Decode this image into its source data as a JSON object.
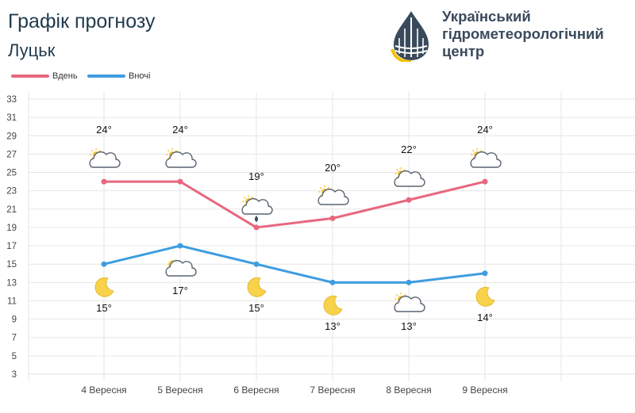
{
  "header": {
    "title": "Графік прогнозу",
    "city": "Луцьк"
  },
  "logo": {
    "line1": "Український",
    "line2": "гідрометеорологічний",
    "line3": "центр"
  },
  "colors": {
    "day": "#e8677f",
    "night": "#3f9ddf",
    "grid": "#e6e6e6",
    "axis_text": "#444444"
  },
  "chart_data": {
    "type": "line",
    "categories": [
      "4 Вересня",
      "5 Вересня",
      "6 Вересня",
      "7 Вересня",
      "8 Вересня",
      "9 Вересня"
    ],
    "series": [
      {
        "name": "Вдень",
        "values": [
          24,
          24,
          19,
          20,
          22,
          24
        ],
        "labels": [
          "24°",
          "24°",
          "19°",
          "20°",
          "22°",
          "24°"
        ],
        "icons": [
          "partly-cloudy-icon",
          "partly-cloudy-icon",
          "cloudy-rain-icon",
          "partly-cloudy-icon",
          "partly-cloudy-icon",
          "partly-cloudy-icon"
        ]
      },
      {
        "name": "Вночі",
        "values": [
          15,
          17,
          15,
          13,
          13,
          14
        ],
        "labels": [
          "15°",
          "17°",
          "15°",
          "13°",
          "13°",
          "14°"
        ],
        "icons": [
          "moon-icon",
          "partly-cloudy-night-icon",
          "moon-icon",
          "moon-icon",
          "partly-cloudy-icon",
          "moon-icon"
        ]
      }
    ],
    "y_ticks": [
      3,
      5,
      7,
      9,
      11,
      13,
      15,
      17,
      19,
      21,
      23,
      25,
      27,
      29,
      31,
      33
    ],
    "ylim": [
      3,
      33
    ],
    "grid": true,
    "legend": "top-left"
  }
}
